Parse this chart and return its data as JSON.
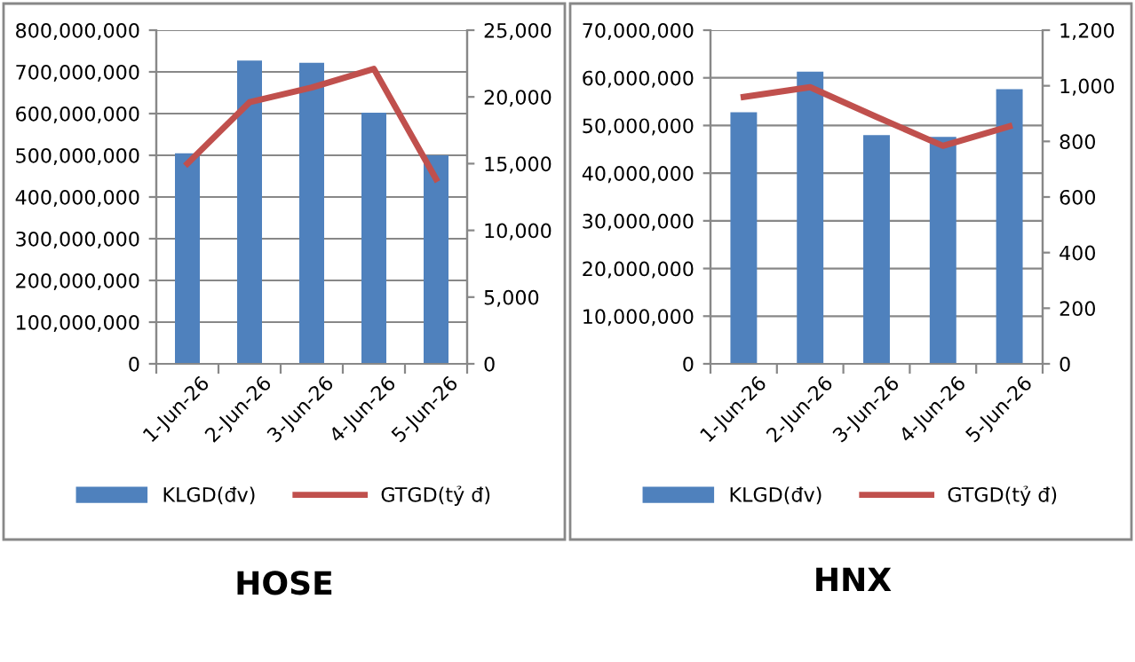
{
  "chart_data": [
    {
      "type": "bar",
      "title": "HOSE",
      "categories": [
        "1-Jun-26",
        "2-Jun-26",
        "3-Jun-26",
        "4-Jun-26",
        "5-Jun-26"
      ],
      "series": [
        {
          "name": "KLGD(đv)",
          "color": "#4f81bd",
          "values": [
            505000000,
            727000000,
            722000000,
            602000000,
            500000000
          ]
        },
        {
          "name": "GTGD(tỷ đ)",
          "type": "line",
          "axis": "y2",
          "color": "#c0504d",
          "values": [
            15000,
            19600,
            20700,
            22100,
            13850
          ]
        }
      ],
      "ylim": [
        0,
        800000000
      ],
      "yticks": [
        0,
        {
          "value": 100000000,
          "label": "100,000,000"
        },
        {
          "value": 200000000,
          "label": "200,000,000"
        },
        {
          "value": 300000000,
          "label": "300,000,000"
        },
        {
          "value": 400000000,
          "label": "400,000,000"
        },
        {
          "value": 500000000,
          "label": "500,000,000"
        },
        {
          "value": 600000000,
          "label": "600,000,000"
        },
        {
          "value": 700000000,
          "label": "700,000,000"
        },
        {
          "value": 800000000,
          "label": "800,000,000"
        }
      ],
      "y2lim": [
        0,
        25000
      ],
      "y2ticks": [
        0,
        {
          "value": 5000,
          "label": "5,000"
        },
        {
          "value": 10000,
          "label": "10,000"
        },
        {
          "value": 15000,
          "label": "15,000"
        },
        {
          "value": 20000,
          "label": "20,000"
        },
        {
          "value": 25000,
          "label": "25,000"
        }
      ],
      "grid": "y",
      "legend": "bottom",
      "marker": "none"
    },
    {
      "type": "bar",
      "title": "HNX",
      "categories": [
        "1-Jun-26",
        "2-Jun-26",
        "3-Jun-26",
        "4-Jun-26",
        "5-Jun-26"
      ],
      "series": [
        {
          "name": "KLGD(đv)",
          "color": "#4f81bd",
          "values": [
            52800000,
            61300000,
            48000000,
            47600000,
            57600000
          ]
        },
        {
          "name": "GTGD(tỷ đ)",
          "type": "line",
          "axis": "y2",
          "color": "#c0504d",
          "values": [
            960,
            995,
            888,
            784,
            854
          ]
        }
      ],
      "ylim": [
        0,
        70000000
      ],
      "yticks": [
        0,
        {
          "value": 10000000,
          "label": "10,000,000"
        },
        {
          "value": 20000000,
          "label": "20,000,000"
        },
        {
          "value": 30000000,
          "label": "30,000,000"
        },
        {
          "value": 40000000,
          "label": "40,000,000"
        },
        {
          "value": 50000000,
          "label": "50,000,000"
        },
        {
          "value": 60000000,
          "label": "60,000,000"
        },
        {
          "value": 70000000,
          "label": "70,000,000"
        }
      ],
      "y2lim": [
        0,
        1200
      ],
      "y2ticks": [
        0,
        200,
        400,
        600,
        800,
        {
          "value": 1000,
          "label": "1,000"
        },
        {
          "value": 1200,
          "label": "1,200"
        }
      ],
      "grid": "y",
      "legend": "bottom",
      "marker": "none"
    }
  ]
}
